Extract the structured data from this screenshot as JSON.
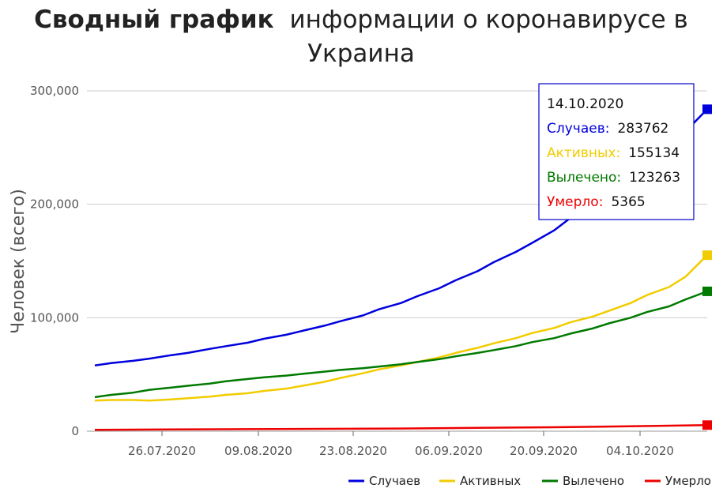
{
  "chart_data": {
    "type": "line",
    "title_bold": "Сводный график",
    "title_rest": "информации о коронавирусе в",
    "title_line2": "Украина",
    "ylabel": "Человек (всего)",
    "ylim": [
      0,
      300000
    ],
    "y_ticks": [
      {
        "value": 0,
        "label": "0"
      },
      {
        "value": 100000,
        "label": "100,000"
      },
      {
        "value": 200000,
        "label": "200,000"
      },
      {
        "value": 300000,
        "label": "300,000"
      }
    ],
    "x_tick_labels": [
      "26.07.2020",
      "09.08.2020",
      "23.08.2020",
      "06.09.2020",
      "20.09.2020",
      "04.10.2020"
    ],
    "x_tick_days": [
      7,
      21,
      35,
      49,
      63,
      77
    ],
    "x_range_days": [
      0,
      89
    ],
    "legend_position": "bottom-right",
    "series": [
      {
        "name": "Случаев",
        "color": "#0000dd",
        "values": [
          [
            0,
            58000
          ],
          [
            3,
            60000
          ],
          [
            7,
            62000
          ],
          [
            10,
            64000
          ],
          [
            14,
            67000
          ],
          [
            17,
            69000
          ],
          [
            21,
            72500
          ],
          [
            24,
            75000
          ],
          [
            28,
            78000
          ],
          [
            31,
            81500
          ],
          [
            35,
            85000
          ],
          [
            38,
            88500
          ],
          [
            42,
            93000
          ],
          [
            45,
            97000
          ],
          [
            49,
            102000
          ],
          [
            52,
            107500
          ],
          [
            56,
            113000
          ],
          [
            59,
            119000
          ],
          [
            63,
            126000
          ],
          [
            66,
            133000
          ],
          [
            70,
            141000
          ],
          [
            73,
            149000
          ],
          [
            77,
            158000
          ],
          [
            80,
            166000
          ],
          [
            84,
            177000
          ],
          [
            87,
            188000
          ],
          [
            91,
            199000
          ],
          [
            94,
            208000
          ],
          [
            98,
            221000
          ],
          [
            101,
            234000
          ],
          [
            105,
            250000
          ],
          [
            108,
            264000
          ],
          [
            112,
            283762
          ]
        ]
      },
      {
        "name": "Активных",
        "color": "#f2cc00",
        "values": [
          [
            0,
            27000
          ],
          [
            3,
            27500
          ],
          [
            7,
            27500
          ],
          [
            10,
            27000
          ],
          [
            14,
            28000
          ],
          [
            17,
            29000
          ],
          [
            21,
            30500
          ],
          [
            24,
            32000
          ],
          [
            28,
            33500
          ],
          [
            31,
            35500
          ],
          [
            35,
            37500
          ],
          [
            38,
            40000
          ],
          [
            42,
            43500
          ],
          [
            45,
            47000
          ],
          [
            49,
            51000
          ],
          [
            52,
            54500
          ],
          [
            56,
            58000
          ],
          [
            59,
            61000
          ],
          [
            63,
            65000
          ],
          [
            66,
            69000
          ],
          [
            70,
            73500
          ],
          [
            73,
            77500
          ],
          [
            77,
            82000
          ],
          [
            80,
            86500
          ],
          [
            84,
            91000
          ],
          [
            87,
            96000
          ],
          [
            91,
            101000
          ],
          [
            94,
            106000
          ],
          [
            98,
            113000
          ],
          [
            101,
            120000
          ],
          [
            105,
            127000
          ],
          [
            108,
            136000
          ],
          [
            112,
            155134
          ]
        ]
      },
      {
        "name": "Вылечено",
        "color": "#007a00",
        "values": [
          [
            0,
            30000
          ],
          [
            3,
            32000
          ],
          [
            7,
            34000
          ],
          [
            10,
            36500
          ],
          [
            14,
            38500
          ],
          [
            17,
            40000
          ],
          [
            21,
            42000
          ],
          [
            24,
            44000
          ],
          [
            28,
            46000
          ],
          [
            31,
            47500
          ],
          [
            35,
            49000
          ],
          [
            38,
            50500
          ],
          [
            42,
            52500
          ],
          [
            45,
            54000
          ],
          [
            49,
            55500
          ],
          [
            52,
            57000
          ],
          [
            56,
            59000
          ],
          [
            59,
            61000
          ],
          [
            63,
            63500
          ],
          [
            66,
            66000
          ],
          [
            70,
            69000
          ],
          [
            73,
            71500
          ],
          [
            77,
            75000
          ],
          [
            80,
            78500
          ],
          [
            84,
            82000
          ],
          [
            87,
            86000
          ],
          [
            91,
            90500
          ],
          [
            94,
            95000
          ],
          [
            98,
            100000
          ],
          [
            101,
            105000
          ],
          [
            105,
            110000
          ],
          [
            108,
            116000
          ],
          [
            112,
            123263
          ]
        ]
      },
      {
        "name": "Умерло",
        "color": "#ee0000",
        "values": [
          [
            0,
            1200
          ],
          [
            14,
            1500
          ],
          [
            28,
            1800
          ],
          [
            42,
            2100
          ],
          [
            56,
            2400
          ],
          [
            70,
            2900
          ],
          [
            84,
            3500
          ],
          [
            98,
            4300
          ],
          [
            112,
            5365
          ]
        ]
      }
    ],
    "tooltip": {
      "date": "14.10.2020",
      "rows": [
        {
          "label": "Случаев:",
          "value": "283762",
          "color": "#0000dd"
        },
        {
          "label": "Активных:",
          "value": "155134",
          "color": "#f2cc00"
        },
        {
          "label": "Вылечено:",
          "value": "123263",
          "color": "#007a00"
        },
        {
          "label": "Умерло:",
          "value": "5365",
          "color": "#ee0000"
        }
      ]
    }
  }
}
